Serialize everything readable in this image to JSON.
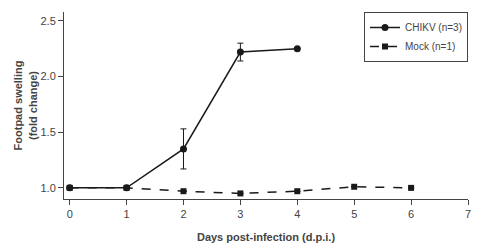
{
  "chart_data": {
    "type": "line",
    "xlabel": "Days post-infection (d.p.i.)",
    "ylabel": "Footpad swelling\n(fold change)",
    "series": [
      {
        "name": "CHIKV (n=3)",
        "color": "#1a1a1a",
        "marker": "circle",
        "line_style": "solid",
        "x": [
          0,
          1,
          2,
          3,
          4
        ],
        "values": [
          1.0,
          1.0,
          1.35,
          2.22,
          2.25
        ],
        "yerr": [
          0.0,
          0.0,
          0.18,
          0.08,
          0.0
        ]
      },
      {
        "name": "Mock (n=1)",
        "color": "#1a1a1a",
        "marker": "square",
        "line_style": "dashed",
        "x": [
          0,
          1,
          2,
          3,
          4,
          5,
          6
        ],
        "values": [
          1.0,
          1.0,
          0.97,
          0.95,
          0.97,
          1.01,
          1.0
        ],
        "yerr": [
          0.0,
          0.0,
          0.0,
          0.0,
          0.0,
          0.0,
          0.0
        ]
      }
    ],
    "xlim": [
      -0.1,
      7
    ],
    "ylim": [
      0.9,
      2.58
    ],
    "xticks": [
      0,
      1,
      2,
      3,
      4,
      5,
      6,
      7
    ],
    "yticks": [
      {
        "value": 1,
        "label": "1.0"
      },
      1.5,
      {
        "value": 2,
        "label": "2.0"
      },
      2.5
    ],
    "grid": false,
    "legend": "upper right"
  }
}
